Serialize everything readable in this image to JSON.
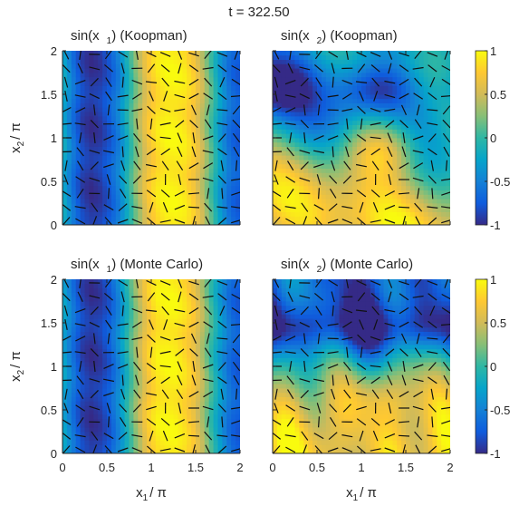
{
  "figure": {
    "title": "t = 322.50"
  },
  "colormap": [
    "#352a87",
    "#0f5cdd",
    "#1481d6",
    "#06a4ca",
    "#2eb7a4",
    "#87bf77",
    "#d1bb59",
    "#fec832",
    "#f9fb0e"
  ],
  "chart_data": [
    {
      "type": "heatmap",
      "title": "sin(x 1) (Koopman)",
      "title_parts": [
        "sin(x",
        "1",
        ") (Koopman)"
      ],
      "xlabel": "",
      "ylabel_parts": [
        "x",
        "2",
        "/ π"
      ],
      "xlim": [
        0,
        2
      ],
      "ylim": [
        0,
        2
      ],
      "clim": [
        -1,
        1
      ],
      "x_ticks": [
        "0",
        "0.5",
        "1",
        "1.5",
        "2"
      ],
      "y_ticks": [
        "0",
        "0.5",
        "1",
        "1.5",
        "2"
      ],
      "field": "sin(x1)",
      "method": "Koopman",
      "columns": [
        -0.15,
        -0.55,
        -0.85,
        -0.95,
        -0.9,
        -0.75,
        -0.5,
        -0.1,
        0.3,
        0.65,
        0.85,
        0.95,
        0.95,
        0.9,
        0.75,
        0.45,
        0.05,
        -0.35,
        -0.65,
        -0.75
      ]
    },
    {
      "type": "heatmap",
      "title": "sin(x 2) (Koopman)",
      "title_parts": [
        "sin(x",
        "2",
        ") (Koopman)"
      ],
      "xlabel": "",
      "ylabel_parts": [],
      "xlim": [
        0,
        2
      ],
      "ylim": [
        0,
        2
      ],
      "clim": [
        -1,
        1
      ],
      "x_ticks": [
        "0",
        "0.5",
        "1",
        "1.5",
        "2"
      ],
      "y_ticks": [],
      "field": "sin(x2)",
      "method": "Koopman"
    },
    {
      "type": "heatmap",
      "title": "sin(x 1) (Monte Carlo)",
      "title_parts": [
        "sin(x",
        "1",
        ") (Monte Carlo)"
      ],
      "xlabel_parts": [
        "x",
        "1",
        "/ π"
      ],
      "ylabel_parts": [
        "x",
        "2",
        "/ π"
      ],
      "xlim": [
        0,
        2
      ],
      "ylim": [
        0,
        2
      ],
      "clim": [
        -1,
        1
      ],
      "x_ticks": [
        "0",
        "0.5",
        "1",
        "1.5",
        "2"
      ],
      "y_ticks": [
        "0",
        "0.5",
        "1",
        "1.5",
        "2"
      ],
      "field": "sin(x1)",
      "method": "Monte Carlo",
      "columns": [
        -0.2,
        -0.55,
        -0.85,
        -0.95,
        -0.9,
        -0.75,
        -0.45,
        -0.05,
        0.35,
        0.7,
        0.9,
        0.95,
        0.95,
        0.85,
        0.7,
        0.4,
        0.0,
        -0.35,
        -0.65,
        -0.75
      ]
    },
    {
      "type": "heatmap",
      "title": "sin(x 2) (Monte Carlo)",
      "title_parts": [
        "sin(x",
        "2",
        ") (Monte Carlo)"
      ],
      "xlabel_parts": [
        "x",
        "1",
        "/ π"
      ],
      "ylabel_parts": [],
      "xlim": [
        0,
        2
      ],
      "ylim": [
        0,
        2
      ],
      "clim": [
        -1,
        1
      ],
      "x_ticks": [
        "0",
        "0.5",
        "1",
        "1.5",
        "2"
      ],
      "y_ticks": [],
      "field": "sin(x2)",
      "method": "Monte Carlo"
    }
  ],
  "colorbars": [
    {
      "range": [
        -1,
        1
      ],
      "ticks": [
        "1",
        "0.5",
        "0",
        "-0.5",
        "-1"
      ]
    },
    {
      "range": [
        -1,
        1
      ],
      "ticks": [
        "1",
        "0.5",
        "0",
        "-0.5",
        "-1"
      ]
    }
  ]
}
